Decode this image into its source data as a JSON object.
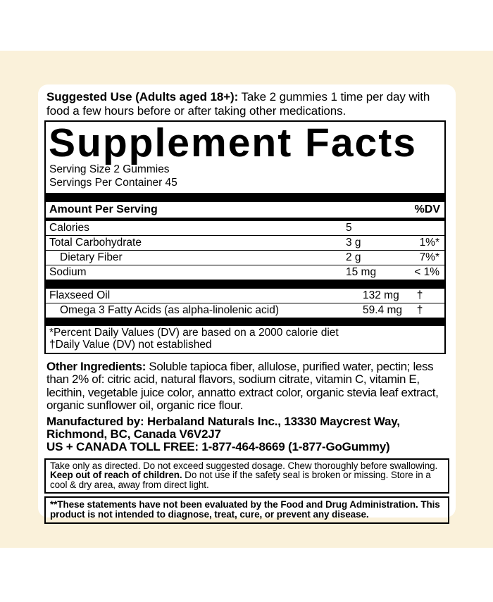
{
  "colors": {
    "band_background": "#faf1da",
    "card_background": "#ffffff",
    "ink": "#000000"
  },
  "suggested_use": {
    "lead": "Suggested Use (Adults aged 18+):",
    "text": " Take 2 gummies 1 time per day with food a few hours before or after taking other medications."
  },
  "supplement_facts": {
    "title": "Supplement Facts",
    "serving_size": "Serving Size 2 Gummies",
    "servings_per_container": "Servings Per Container 45",
    "header": {
      "left": "Amount Per Serving",
      "right": "%DV"
    },
    "rows": [
      {
        "name": "Calories",
        "amount": "5",
        "dv": "",
        "indent": false,
        "section": 1
      },
      {
        "name": "Total Carbohydrate",
        "amount": "3 g",
        "dv": "1%*",
        "indent": false,
        "section": 1
      },
      {
        "name": "Dietary Fiber",
        "amount": "2 g",
        "dv": "7%*",
        "indent": true,
        "section": 1
      },
      {
        "name": "Sodium",
        "amount": "15 mg",
        "dv": "< 1%",
        "indent": false,
        "section": 1
      },
      {
        "name": "Flaxseed Oil",
        "amount": "132 mg",
        "dv": "†",
        "indent": false,
        "section": 2
      },
      {
        "name": "Omega 3 Fatty Acids (as alpha-linolenic acid)",
        "amount": "59.4 mg",
        "dv": "†",
        "indent": true,
        "section": 2
      }
    ],
    "footnotes": [
      "*Percent Daily Values (DV) are based on a 2000 calorie diet",
      "†Daily Value (DV) not established"
    ]
  },
  "other_ingredients": {
    "lead": "Other Ingredients:",
    "text": " Soluble tapioca fiber, allulose, purified water, pectin; less than 2% of: citric acid, natural flavors, sodium citrate, vitamin C, vitamin E, lecithin, vegetable juice color, annatto extract color, organic stevia leaf extract, organic sunflower oil, organic rice flour."
  },
  "manufacturer": {
    "address": "Manufactured by: Herbaland Naturals Inc., 13330 Maycrest Way, Richmond, BC, Canada V6V2J7",
    "toll_free": "US + CANADA TOLL FREE: 1-877-464-8669 (1-877-GoGummy)"
  },
  "warnings": {
    "directions_part1": "Take only as directed. Do not exceed suggested dosage. Chew thoroughly before swallowing. ",
    "directions_bold": "Keep out of reach of children.",
    "directions_part2": " Do not use if the safety seal is broken or missing. Store in a cool & dry area, away from direct light.",
    "fda_disclaimer": "**These statements have not been evaluated by the Food and Drug Administration. This product is not intended to diagnose, treat, cure, or prevent any disease."
  }
}
